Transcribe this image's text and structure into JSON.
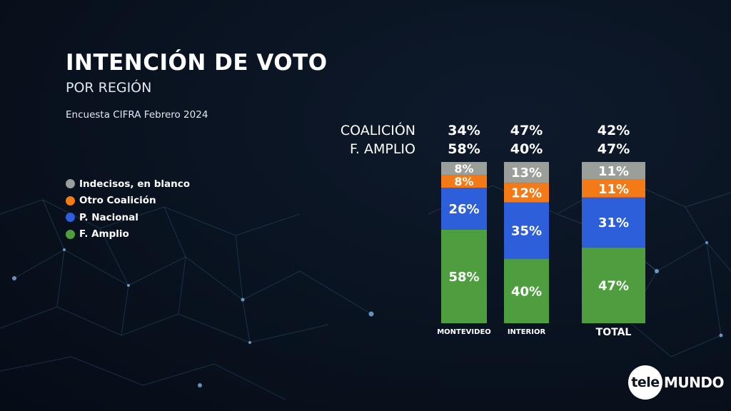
{
  "header": {
    "title": "INTENCIÓN DE VOTO",
    "subtitle": "POR REGIÓN",
    "source": "Encuesta CIFRA Febrero 2024"
  },
  "legend": [
    {
      "label": "Indecisos, en blanco",
      "color": "#9a9f99"
    },
    {
      "label": "Otro Coalición",
      "color": "#f47a17"
    },
    {
      "label": "P. Nacional",
      "color": "#2c5fd9"
    },
    {
      "label": "F. Amplio",
      "color": "#4e9e3f"
    }
  ],
  "summary": {
    "rows": [
      {
        "label": "COALICIÓN",
        "values": [
          "34%",
          "47%",
          "42%"
        ]
      },
      {
        "label": "F. AMPLIO",
        "values": [
          "58%",
          "40%",
          "47%"
        ]
      }
    ]
  },
  "chart_data": {
    "type": "bar",
    "stacked": true,
    "categories": [
      "MONTEVIDEO",
      "INTERIOR",
      "TOTAL"
    ],
    "series": [
      {
        "name": "F. Amplio",
        "color": "#4e9e3f",
        "values": [
          58,
          40,
          47
        ]
      },
      {
        "name": "P. Nacional",
        "color": "#2c5fd9",
        "values": [
          26,
          35,
          31
        ]
      },
      {
        "name": "Otro Coalición",
        "color": "#f47a17",
        "values": [
          8,
          12,
          11
        ]
      },
      {
        "name": "Indecisos, en blanco",
        "color": "#9a9f99",
        "values": [
          8,
          13,
          11
        ]
      }
    ],
    "ylim": [
      0,
      100
    ],
    "title": "",
    "xlabel": "",
    "ylabel": ""
  },
  "logo": {
    "left": "tele",
    "right": "MUNDO"
  }
}
